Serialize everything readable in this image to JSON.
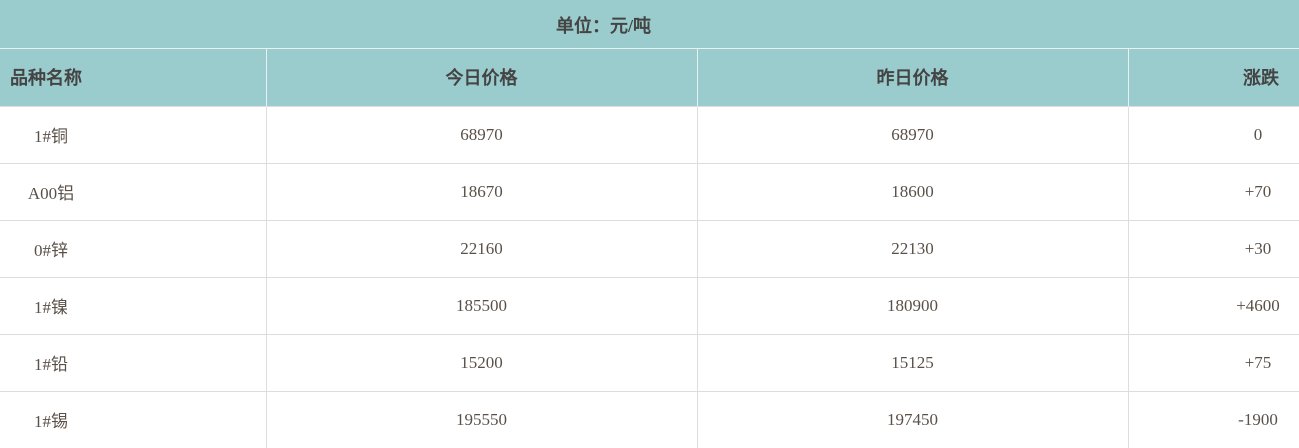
{
  "unit_label": "单位：元/吨",
  "columns": [
    "品种名称",
    "今日价格",
    "昨日价格",
    "涨跌"
  ],
  "rows": [
    {
      "name": "1#铜",
      "today": "68970",
      "yesterday": "68970",
      "change": "0"
    },
    {
      "name": "A00铝",
      "today": "18670",
      "yesterday": "18600",
      "change": "+70"
    },
    {
      "name": "0#锌",
      "today": "22160",
      "yesterday": "22130",
      "change": "+30"
    },
    {
      "name": "1#镍",
      "today": "185500",
      "yesterday": "180900",
      "change": "+4600"
    },
    {
      "name": "1#铅",
      "today": "15200",
      "yesterday": "15125",
      "change": "+75"
    },
    {
      "name": "1#锡",
      "today": "195550",
      "yesterday": "197450",
      "change": "-1900"
    }
  ],
  "colors": {
    "header_bg": "#9acccd",
    "border": "#dddddd"
  }
}
